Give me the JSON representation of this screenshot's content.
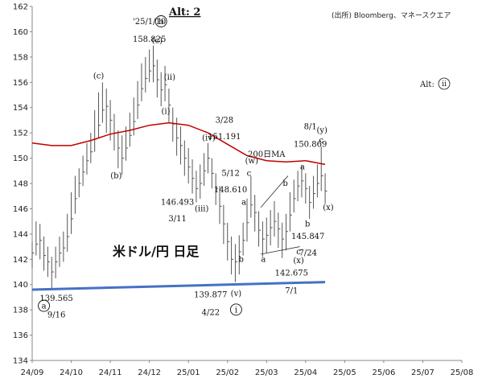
{
  "chart_data": {
    "type": "line",
    "title": "Alt: 2",
    "source_note": "(出所) Bloomberg、マネースクエア",
    "main_label": "米ドル/円 日足",
    "scenario_label": "Alt:",
    "scenario_circle": "ii",
    "ylim": [
      134,
      162
    ],
    "yticks": [
      134,
      136,
      138,
      140,
      142,
      144,
      146,
      148,
      150,
      152,
      154,
      156,
      158,
      160,
      162
    ],
    "xticks": [
      "24/09",
      "24/10",
      "24/11",
      "24/12",
      "25/01",
      "25/02",
      "25/03",
      "25/04",
      "25/05",
      "25/06",
      "25/07",
      "25/08"
    ],
    "grid": false,
    "series": [
      {
        "type": "ohlc",
        "color": "#555555",
        "points": [
          [
            0,
            142.5,
            143.4,
            141.3
          ],
          [
            0.1,
            143.2,
            145.0,
            142.3
          ],
          [
            0.2,
            143.5,
            144.8,
            142.0
          ],
          [
            0.3,
            142.3,
            143.8,
            141.1
          ],
          [
            0.4,
            141.8,
            143.0,
            140.6
          ],
          [
            0.5,
            141.0,
            142.2,
            139.58
          ],
          [
            0.6,
            141.8,
            143.0,
            140.5
          ],
          [
            0.7,
            142.5,
            143.8,
            141.4
          ],
          [
            0.8,
            142.9,
            144.2,
            141.8
          ],
          [
            0.9,
            143.8,
            145.6,
            142.6
          ],
          [
            1.0,
            145.2,
            147.3,
            144.0
          ],
          [
            1.1,
            146.8,
            148.6,
            145.6
          ],
          [
            1.2,
            148.0,
            149.2,
            146.9
          ],
          [
            1.3,
            148.9,
            150.2,
            147.8
          ],
          [
            1.4,
            149.8,
            151.2,
            148.7
          ],
          [
            1.5,
            150.5,
            152.0,
            149.6
          ],
          [
            1.6,
            151.5,
            153.8,
            150.5
          ],
          [
            1.7,
            152.6,
            155.2,
            151.6
          ],
          [
            1.8,
            153.8,
            156.0,
            152.8
          ],
          [
            1.9,
            154.1,
            155.5,
            152.0
          ],
          [
            2.0,
            153.0,
            154.6,
            151.4
          ],
          [
            2.1,
            152.0,
            153.5,
            150.6
          ],
          [
            2.2,
            150.8,
            152.2,
            149.2
          ],
          [
            2.3,
            150.0,
            151.8,
            148.7
          ],
          [
            2.4,
            150.8,
            152.5,
            149.8
          ],
          [
            2.5,
            151.8,
            153.6,
            150.9
          ],
          [
            2.6,
            152.9,
            154.8,
            151.8
          ],
          [
            2.7,
            154.2,
            156.1,
            153.1
          ],
          [
            2.8,
            155.5,
            157.5,
            154.5
          ],
          [
            2.9,
            156.3,
            158.0,
            155.2
          ],
          [
            3.0,
            156.9,
            158.6,
            156.0
          ],
          [
            3.1,
            157.3,
            158.9,
            156.0
          ],
          [
            3.2,
            156.2,
            157.8,
            154.8
          ],
          [
            3.3,
            155.4,
            156.8,
            154.1
          ],
          [
            3.4,
            155.8,
            157.3,
            154.5
          ],
          [
            3.5,
            154.2,
            155.5,
            152.8
          ],
          [
            3.6,
            152.7,
            154.0,
            151.3
          ],
          [
            3.7,
            151.6,
            153.2,
            150.2
          ],
          [
            3.8,
            151.0,
            152.5,
            149.5
          ],
          [
            3.9,
            150.0,
            151.4,
            148.6
          ],
          [
            4.0,
            149.3,
            150.8,
            148.0
          ],
          [
            4.1,
            148.4,
            149.9,
            147.2
          ],
          [
            4.2,
            147.6,
            149.0,
            146.5
          ],
          [
            4.3,
            148.0,
            149.5,
            146.8
          ],
          [
            4.4,
            149.0,
            150.4,
            147.8
          ],
          [
            4.5,
            150.0,
            151.2,
            148.8
          ],
          [
            4.6,
            148.8,
            150.0,
            147.6
          ],
          [
            4.7,
            147.6,
            148.8,
            146.3
          ],
          [
            4.8,
            146.2,
            147.8,
            144.8
          ],
          [
            4.9,
            144.8,
            146.3,
            143.2
          ],
          [
            5.0,
            143.4,
            144.9,
            141.9
          ],
          [
            5.1,
            142.0,
            143.8,
            140.8
          ],
          [
            5.2,
            141.8,
            143.2,
            140.2
          ],
          [
            5.3,
            142.6,
            143.9,
            140.8
          ],
          [
            5.4,
            143.5,
            144.9,
            142.3
          ],
          [
            5.5,
            144.9,
            146.8,
            143.4
          ],
          [
            5.6,
            146.3,
            148.6,
            145.3
          ],
          [
            5.7,
            145.7,
            147.1,
            144.2
          ],
          [
            5.8,
            144.3,
            145.8,
            143.0
          ],
          [
            5.9,
            143.6,
            145.0,
            142.2
          ],
          [
            6.0,
            143.9,
            145.3,
            142.5
          ],
          [
            6.1,
            144.5,
            145.9,
            143.1
          ],
          [
            6.2,
            145.0,
            146.6,
            143.8
          ],
          [
            6.3,
            144.4,
            145.7,
            142.9
          ],
          [
            6.4,
            143.6,
            144.9,
            142.1
          ],
          [
            6.5,
            144.2,
            145.6,
            142.7
          ],
          [
            6.6,
            145.5,
            147.3,
            144.2
          ],
          [
            6.7,
            146.8,
            148.3,
            145.7
          ],
          [
            6.8,
            147.8,
            149.0,
            146.6
          ],
          [
            6.9,
            148.2,
            149.4,
            146.9
          ],
          [
            7.0,
            147.6,
            148.8,
            146.4
          ],
          [
            7.1,
            146.5,
            147.8,
            145.2
          ],
          [
            7.2,
            147.2,
            148.6,
            146.0
          ],
          [
            7.3,
            148.0,
            149.5,
            146.9
          ],
          [
            7.4,
            148.6,
            150.9,
            147.4
          ],
          [
            7.5,
            147.4,
            148.8,
            146.4
          ]
        ]
      },
      {
        "name": "200日MA",
        "type": "line",
        "color": "#c00000",
        "points": [
          [
            0,
            151.2
          ],
          [
            0.5,
            151.0
          ],
          [
            1.0,
            151.0
          ],
          [
            1.5,
            151.4
          ],
          [
            2.0,
            151.9
          ],
          [
            2.5,
            152.2
          ],
          [
            3.0,
            152.6
          ],
          [
            3.5,
            152.8
          ],
          [
            4.0,
            152.6
          ],
          [
            4.5,
            152.0
          ],
          [
            5.0,
            151.1
          ],
          [
            5.5,
            150.2
          ],
          [
            6.0,
            149.8
          ],
          [
            6.5,
            149.7
          ],
          [
            7.0,
            149.8
          ],
          [
            7.5,
            149.5
          ]
        ]
      },
      {
        "name": "",
        "type": "line",
        "color": "#4472c4",
        "points": [
          [
            0,
            139.6
          ],
          [
            7.5,
            140.2
          ]
        ]
      }
    ],
    "annotations": [
      {
        "text": "'25/1/10",
        "x": 3.0,
        "y": 160.6
      },
      {
        "text": "158.825",
        "x": 3.0,
        "y": 159.2
      },
      {
        "text": "(c)",
        "x": 1.7,
        "y": 156.3
      },
      {
        "text": "(b)",
        "x": 2.15,
        "y": 148.4
      },
      {
        "text": "(c)",
        "x": 3.2,
        "y": 159.1
      },
      {
        "text": "(ii)",
        "x": 3.52,
        "y": 156.2
      },
      {
        "text": "(i)",
        "x": 3.42,
        "y": 153.5
      },
      {
        "text": "(iv)",
        "x": 4.52,
        "y": 151.4
      },
      {
        "text": "(iii)",
        "x": 4.34,
        "y": 145.8
      },
      {
        "text": "146.493",
        "x": 3.72,
        "y": 146.3
      },
      {
        "text": "3/11",
        "x": 3.72,
        "y": 145.0
      },
      {
        "text": "3/28",
        "x": 4.92,
        "y": 152.8
      },
      {
        "text": "151.191",
        "x": 4.92,
        "y": 151.5
      },
      {
        "text": "(w)",
        "x": 5.62,
        "y": 149.6
      },
      {
        "text": "c",
        "x": 5.55,
        "y": 148.6
      },
      {
        "text": "5/12",
        "x": 5.08,
        "y": 148.6
      },
      {
        "text": "148.610",
        "x": 5.08,
        "y": 147.3
      },
      {
        "text": "a",
        "x": 5.42,
        "y": 146.3
      },
      {
        "text": "b",
        "x": 5.35,
        "y": 141.8
      },
      {
        "text": "a",
        "x": 5.92,
        "y": 141.8
      },
      {
        "text": "b",
        "x": 6.48,
        "y": 147.8
      },
      {
        "text": "c",
        "x": 6.82,
        "y": 142.4
      },
      {
        "text": "(x)",
        "x": 6.82,
        "y": 141.7
      },
      {
        "text": "a",
        "x": 6.92,
        "y": 149.1
      },
      {
        "text": "b",
        "x": 7.05,
        "y": 144.6
      },
      {
        "text": "8/1",
        "x": 7.12,
        "y": 152.3
      },
      {
        "text": "150.869",
        "x": 7.12,
        "y": 150.9
      },
      {
        "text": "(y)",
        "x": 7.42,
        "y": 152.0
      },
      {
        "text": "c",
        "x": 7.4,
        "y": 151.2
      },
      {
        "text": "(x)",
        "x": 7.58,
        "y": 145.9
      },
      {
        "text": "145.847",
        "x": 7.06,
        "y": 143.6
      },
      {
        "text": "7/24",
        "x": 7.06,
        "y": 142.3
      },
      {
        "text": "142.675",
        "x": 6.64,
        "y": 140.7
      },
      {
        "text": "7/1",
        "x": 6.64,
        "y": 139.3
      },
      {
        "text": "139.877",
        "x": 4.57,
        "y": 139.0
      },
      {
        "text": "4/22",
        "x": 4.57,
        "y": 137.6
      },
      {
        "text": "(v)",
        "x": 5.22,
        "y": 139.1
      },
      {
        "text": "139.565",
        "x": 0.62,
        "y": 138.7
      },
      {
        "text": "9/16",
        "x": 0.62,
        "y": 137.4
      }
    ],
    "circled": [
      {
        "text": "b",
        "x": 3.3,
        "y": 160.6
      },
      {
        "text": "a",
        "x": 0.3,
        "y": 138.1
      },
      {
        "text": "i",
        "x": 5.22,
        "y": 137.8
      }
    ],
    "ma_label": {
      "text": "200日MA",
      "x": 6.0,
      "y": 150.1
    },
    "triangle_lines": [
      [
        [
          5.85,
          146.1
        ],
        [
          6.55,
          148.6
        ]
      ],
      [
        [
          5.85,
          142.4
        ],
        [
          6.85,
          143.0
        ]
      ]
    ]
  }
}
